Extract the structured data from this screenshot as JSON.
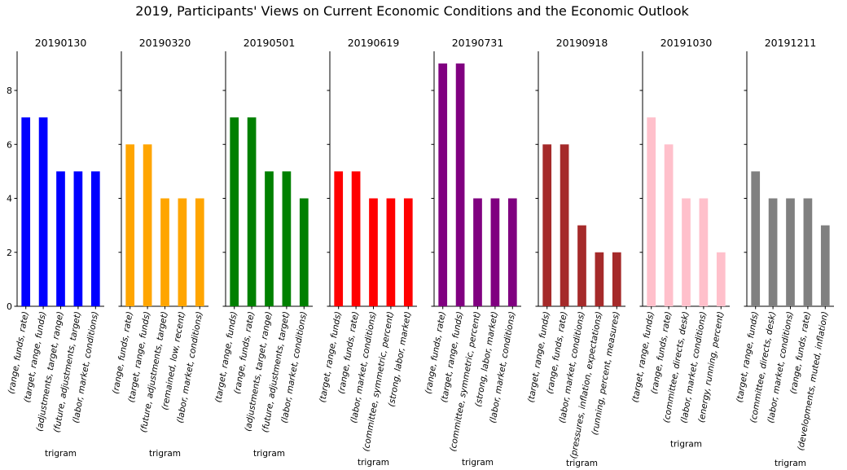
{
  "chart_data": {
    "type": "bar",
    "title": "2019, Participants' Views on Current Economic Conditions and the Economic Outlook",
    "xlabel": "trigram",
    "ylabel": "",
    "ylim": [
      0,
      9.45
    ],
    "yticks": [
      0,
      2,
      4,
      6,
      8
    ],
    "grid": false,
    "shared_y": true,
    "panels": [
      {
        "title": "20190130",
        "color": "#0000ff",
        "categories": [
          "(range, funds, rate)",
          "(target, range, funds)",
          "(adjustments, target, range)",
          "(future, adjustments, target)",
          "(labor, market, conditions)"
        ],
        "values": [
          7,
          7,
          5,
          5,
          5
        ]
      },
      {
        "title": "20190320",
        "color": "#ffa500",
        "categories": [
          "(range, funds, rate)",
          "(target, range, funds)",
          "(future, adjustments, target)",
          "(remained, low, recent)",
          "(labor, market, conditions)"
        ],
        "values": [
          6,
          6,
          4,
          4,
          4
        ]
      },
      {
        "title": "20190501",
        "color": "#008000",
        "categories": [
          "(target, range, funds)",
          "(range, funds, rate)",
          "(adjustments, target, range)",
          "(future, adjustments, target)",
          "(labor, market, conditions)"
        ],
        "values": [
          7,
          7,
          5,
          5,
          4
        ]
      },
      {
        "title": "20190619",
        "color": "#ff0000",
        "categories": [
          "(target, range, funds)",
          "(range, funds, rate)",
          "(labor, market, conditions)",
          "(committee, symmetric, percent)",
          "(strong, labor, market)"
        ],
        "values": [
          5,
          5,
          4,
          4,
          4
        ]
      },
      {
        "title": "20190731",
        "color": "#800080",
        "categories": [
          "(range, funds, rate)",
          "(target, range, funds)",
          "(committee, symmetric, percent)",
          "(strong, labor, market)",
          "(labor, market, conditions)"
        ],
        "values": [
          9,
          9,
          4,
          4,
          4
        ]
      },
      {
        "title": "20190918",
        "color": "#a52a2a",
        "categories": [
          "(target, range, funds)",
          "(range, funds, rate)",
          "(labor, market, conditions)",
          "(pressures, inflation, expectations)",
          "(running, percent, measures)"
        ],
        "values": [
          6,
          6,
          3,
          2,
          2
        ]
      },
      {
        "title": "20191030",
        "color": "#ffc0cb",
        "categories": [
          "(target, range, funds)",
          "(range, funds, rate)",
          "(committee, directs, desk)",
          "(labor, market, conditions)",
          "(energy, running, percent)"
        ],
        "values": [
          7,
          6,
          4,
          4,
          2
        ]
      },
      {
        "title": "20191211",
        "color": "#808080",
        "categories": [
          "(target, range, funds)",
          "(committee, directs, desk)",
          "(labor, market, conditions)",
          "(range, funds, rate)",
          "(developments, muted, inflation)"
        ],
        "values": [
          5,
          4,
          4,
          4,
          3
        ]
      }
    ]
  }
}
